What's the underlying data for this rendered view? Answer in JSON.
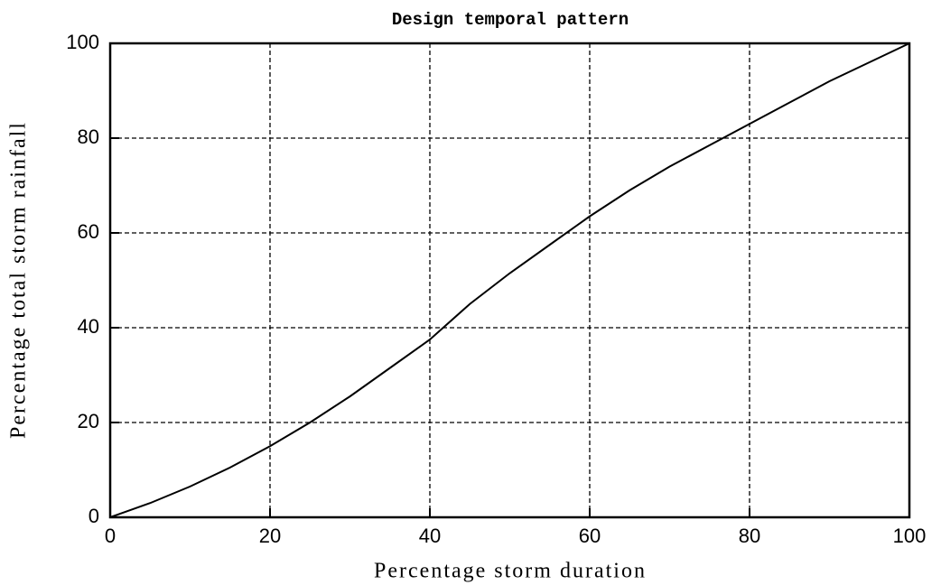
{
  "chart_data": {
    "type": "line",
    "title": "Design temporal pattern",
    "x_label": "Percentage storm duration",
    "y_label": "Percentage total storm rainfall",
    "x": [
      0,
      5,
      10,
      15,
      20,
      25,
      30,
      35,
      40,
      45,
      50,
      55,
      60,
      65,
      70,
      75,
      80,
      85,
      90,
      95,
      100
    ],
    "series": [
      {
        "color": "#000000",
        "values": [
          0,
          3,
          6.5,
          10.5,
          15,
          20,
          25.5,
          31.5,
          37.5,
          45,
          51.5,
          57.5,
          63.5,
          69,
          74,
          78.5,
          83,
          87.5,
          92,
          96,
          100
        ]
      }
    ],
    "xlim": [
      0,
      100
    ],
    "ylim": [
      0,
      100
    ],
    "xticks": [
      0,
      20,
      40,
      60,
      80,
      100
    ],
    "yticks": [
      0,
      20,
      40,
      60,
      80,
      100
    ],
    "grid": true
  }
}
